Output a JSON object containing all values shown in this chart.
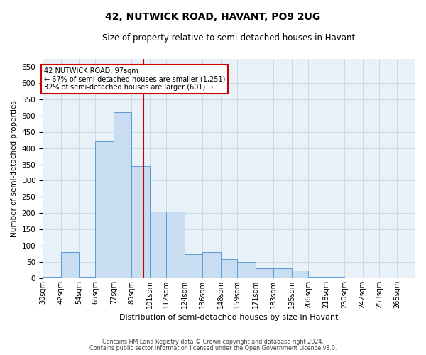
{
  "title": "42, NUTWICK ROAD, HAVANT, PO9 2UG",
  "subtitle": "Size of property relative to semi-detached houses in Havant",
  "xlabel": "Distribution of semi-detached houses by size in Havant",
  "ylabel": "Number of semi-detached properties",
  "footnote1": "Contains HM Land Registry data © Crown copyright and database right 2024.",
  "footnote2": "Contains public sector information licensed under the Open Government Licence v3.0.",
  "annotation_line1": "42 NUTWICK ROAD: 97sqm",
  "annotation_line2": "← 67% of semi-detached houses are smaller (1,251)",
  "annotation_line3": "32% of semi-detached houses are larger (601) →",
  "property_sqm": 97,
  "bar_color": "#c9ddf0",
  "bar_edge_color": "#5b9bd5",
  "vline_color": "#cc0000",
  "bin_edges": [
    30,
    42,
    54,
    65,
    77,
    89,
    101,
    112,
    124,
    136,
    148,
    159,
    171,
    183,
    195,
    206,
    218,
    230,
    242,
    253,
    265,
    277
  ],
  "bin_labels": [
    "30sqm",
    "42sqm",
    "54sqm",
    "65sqm",
    "77sqm",
    "89sqm",
    "101sqm",
    "112sqm",
    "124sqm",
    "136sqm",
    "148sqm",
    "159sqm",
    "171sqm",
    "183sqm",
    "195sqm",
    "206sqm",
    "218sqm",
    "230sqm",
    "242sqm",
    "253sqm",
    "265sqm"
  ],
  "values": [
    5,
    80,
    5,
    420,
    510,
    345,
    205,
    205,
    75,
    80,
    60,
    50,
    30,
    30,
    25,
    5,
    5,
    0,
    0,
    0,
    3
  ],
  "ylim": [
    0,
    675
  ],
  "yticks": [
    0,
    50,
    100,
    150,
    200,
    250,
    300,
    350,
    400,
    450,
    500,
    550,
    600,
    650
  ],
  "grid_color": "#ccd9e8",
  "bg_color": "#e8f0f8"
}
